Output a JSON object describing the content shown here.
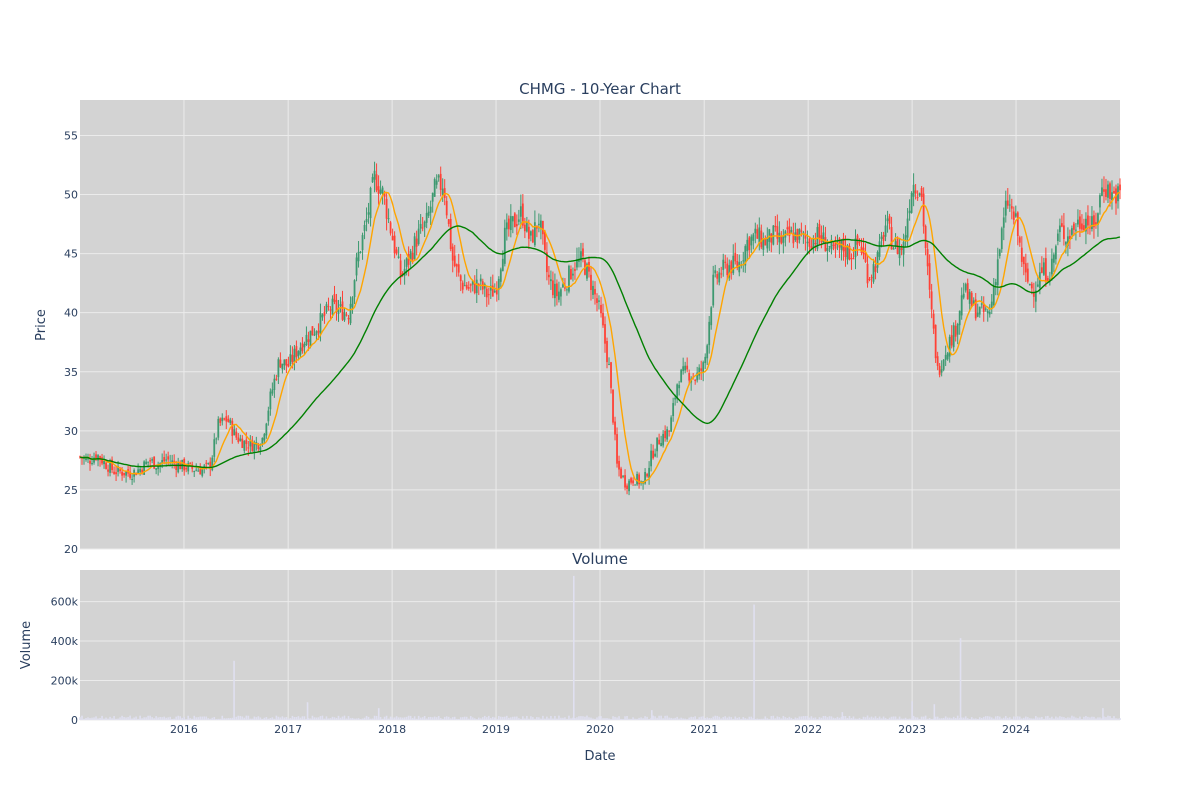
{
  "chart_data": [
    {
      "type": "candlestick",
      "title": "CHMG - 10-Year Chart",
      "ylabel": "Price",
      "xlabel": "",
      "ylim": [
        20,
        58
      ],
      "xlim": [
        "2015-01-01",
        "2024-12-31"
      ],
      "x_tick_labels": [
        "2016",
        "2017",
        "2018",
        "2019",
        "2020",
        "2021",
        "2022",
        "2023",
        "2024"
      ],
      "y_ticks": [
        20,
        25,
        30,
        35,
        40,
        45,
        50,
        55
      ],
      "grid": true,
      "background_color": "#d3d3d3",
      "increasing_color": "#3d9970",
      "decreasing_color": "#ff4136",
      "series": [
        {
          "kind": "price-path",
          "dates": [
            "2015-01-01",
            "2015-02-01",
            "2015-03-01",
            "2015-04-01",
            "2015-05-01",
            "2015-06-01",
            "2015-07-01",
            "2015-08-01",
            "2015-09-01",
            "2015-10-01",
            "2015-11-01",
            "2015-12-01",
            "2016-01-01",
            "2016-02-01",
            "2016-03-01",
            "2016-04-01",
            "2016-05-01",
            "2016-06-01",
            "2016-07-01",
            "2016-08-01",
            "2016-09-01",
            "2016-10-01",
            "2016-11-01",
            "2016-12-01",
            "2017-01-01",
            "2017-02-01",
            "2017-03-01",
            "2017-04-01",
            "2017-05-01",
            "2017-06-01",
            "2017-07-01",
            "2017-08-01",
            "2017-09-01",
            "2017-10-01",
            "2017-11-01",
            "2017-12-01",
            "2018-01-01",
            "2018-02-01",
            "2018-03-01",
            "2018-04-01",
            "2018-05-01",
            "2018-06-01",
            "2018-07-01",
            "2018-08-01",
            "2018-09-01",
            "2018-10-01",
            "2018-11-01",
            "2018-12-01",
            "2019-01-01",
            "2019-02-01",
            "2019-03-01",
            "2019-04-01",
            "2019-05-01",
            "2019-06-01",
            "2019-07-01",
            "2019-08-01",
            "2019-09-01",
            "2019-10-01",
            "2019-11-01",
            "2019-12-01",
            "2020-01-01",
            "2020-02-01",
            "2020-03-01",
            "2020-04-01",
            "2020-05-01",
            "2020-06-01",
            "2020-07-01",
            "2020-08-01",
            "2020-09-01",
            "2020-10-01",
            "2020-11-01",
            "2020-12-01",
            "2021-01-01",
            "2021-02-01",
            "2021-03-01",
            "2021-04-01",
            "2021-05-01",
            "2021-06-01",
            "2021-07-01",
            "2021-08-01",
            "2021-09-01",
            "2021-10-01",
            "2021-11-01",
            "2021-12-01",
            "2022-01-01",
            "2022-02-01",
            "2022-03-01",
            "2022-04-01",
            "2022-05-01",
            "2022-06-01",
            "2022-07-01",
            "2022-08-01",
            "2022-09-01",
            "2022-10-01",
            "2022-11-01",
            "2022-12-01",
            "2023-01-01",
            "2023-02-01",
            "2023-03-01",
            "2023-04-01",
            "2023-05-01",
            "2023-06-01",
            "2023-07-01",
            "2023-08-01",
            "2023-09-01",
            "2023-10-01",
            "2023-11-01",
            "2023-12-01",
            "2024-01-01",
            "2024-02-01",
            "2024-03-01",
            "2024-04-01",
            "2024-05-01",
            "2024-06-01",
            "2024-07-01",
            "2024-08-01",
            "2024-09-01",
            "2024-10-01",
            "2024-11-01",
            "2024-12-01"
          ],
          "close": [
            27.8,
            27.5,
            28.0,
            27.2,
            26.6,
            26.5,
            26.4,
            26.8,
            27.5,
            27.1,
            27.6,
            27.2,
            27.0,
            26.8,
            26.7,
            27.0,
            30.5,
            31.0,
            29.5,
            29.0,
            28.8,
            29.2,
            33.0,
            36.0,
            35.5,
            36.8,
            37.8,
            38.5,
            39.5,
            40.5,
            40.2,
            40.0,
            44.5,
            47.5,
            51.5,
            50.0,
            46.5,
            43.0,
            44.5,
            46.5,
            47.5,
            50.5,
            51.0,
            44.5,
            42.5,
            42.0,
            42.5,
            41.5,
            42.0,
            46.5,
            47.5,
            48.5,
            46.0,
            48.0,
            43.0,
            41.5,
            42.5,
            44.0,
            44.5,
            42.5,
            40.0,
            35.5,
            27.0,
            25.5,
            26.0,
            25.5,
            28.0,
            29.5,
            30.0,
            34.5,
            35.0,
            34.5,
            35.5,
            42.5,
            43.5,
            44.0,
            44.0,
            46.0,
            46.5,
            46.0,
            46.5,
            46.0,
            46.5,
            46.5,
            46.0,
            46.5,
            46.0,
            45.0,
            45.5,
            45.0,
            46.0,
            43.0,
            44.5,
            47.5,
            45.5,
            45.5,
            51.0,
            50.5,
            42.0,
            35.0,
            37.0,
            38.5,
            42.0,
            40.5,
            40.0,
            40.0,
            45.0,
            49.5,
            47.5,
            43.0,
            42.0,
            43.5,
            43.5,
            47.0,
            46.5,
            47.5,
            48.0,
            47.0,
            51.0,
            50.0
          ],
          "ma_short_color": "#ffa500",
          "ma_long_color": "#008000"
        }
      ]
    },
    {
      "type": "bar",
      "title": "Volume",
      "ylabel": "Volume",
      "xlabel": "Date",
      "ylim": [
        0,
        760000
      ],
      "y_tick_labels": [
        "0",
        "200k",
        "400k",
        "600k"
      ],
      "y_ticks": [
        0,
        200000,
        400000,
        600000
      ],
      "x_tick_labels": [
        "2016",
        "2017",
        "2018",
        "2019",
        "2020",
        "2021",
        "2022",
        "2023",
        "2024"
      ],
      "grid": true,
      "background_color": "#d3d3d3",
      "bar_color": "#e0e0f0",
      "spikes": [
        {
          "date": "2016-06-25",
          "value": 300000
        },
        {
          "date": "2017-03-10",
          "value": 90000
        },
        {
          "date": "2017-11-15",
          "value": 60000
        },
        {
          "date": "2019-10-01",
          "value": 730000
        },
        {
          "date": "2020-07-01",
          "value": 50000
        },
        {
          "date": "2021-06-25",
          "value": 585000
        },
        {
          "date": "2022-05-01",
          "value": 40000
        },
        {
          "date": "2023-01-01",
          "value": 95000
        },
        {
          "date": "2023-03-20",
          "value": 80000
        },
        {
          "date": "2023-06-20",
          "value": 415000
        },
        {
          "date": "2024-11-01",
          "value": 60000
        }
      ],
      "baseline_value": 15000
    }
  ]
}
